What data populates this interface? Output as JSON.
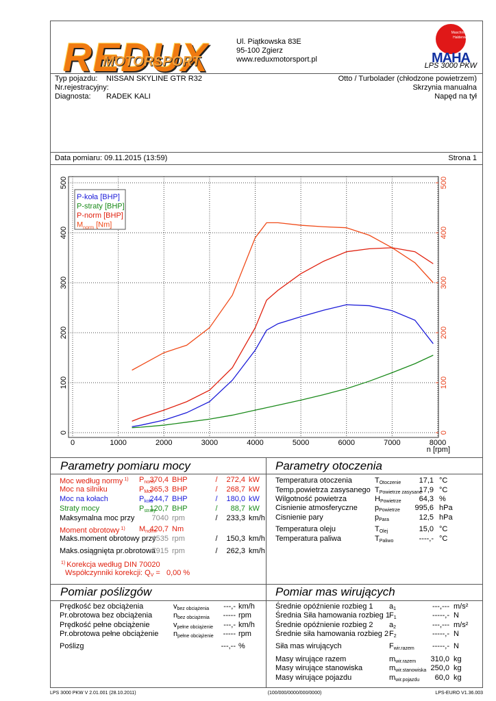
{
  "header": {
    "logo": "REDUX",
    "logo_sub": "MOTORSPORT",
    "address": [
      "Ul. Piątkowska 83E",
      "95-100 Zgierz",
      "www.reduxmotorsport.pl"
    ],
    "maha_ring": "Maschinenbau Haldenwang",
    "maha": "MAHA",
    "model": "LPS 3000 PKW"
  },
  "vehicle": {
    "left": [
      {
        "label": "Typ pojazdu:",
        "value": "NISSAN SKYLINE GTR R32"
      },
      {
        "label": "Nr.rejestracyjny:"
      },
      {
        "label": "Diagnosta:",
        "value": "RADEK KALI"
      }
    ],
    "right": [
      "Otto / Turbolader (chłodzone powietrzem)",
      "Skrzynia manualna",
      "Napęd na tył"
    ]
  },
  "measurement": {
    "date": "Data pomiaru: 09.11.2015 (13:59)",
    "page": "Strona 1"
  },
  "chart_data": {
    "type": "line",
    "x_label": "n [rpm]",
    "x": [
      1300,
      1500,
      2000,
      2500,
      3000,
      3500,
      4000,
      4250,
      4500,
      5000,
      5500,
      6000,
      6500,
      7000,
      7500,
      7900
    ],
    "xlim": [
      0,
      8000
    ],
    "xticks": [
      0,
      1000,
      2000,
      3000,
      4000,
      5000,
      6000,
      7000,
      8000
    ],
    "ylim": [
      0,
      500
    ],
    "yticks": [
      0,
      100,
      200,
      300,
      400,
      500
    ],
    "y2lim": [
      0,
      500
    ],
    "y2ticks": [
      0,
      100,
      200,
      300,
      400,
      500
    ],
    "y2_color": "#e8401a",
    "grid": true,
    "legend": "top-left",
    "series": [
      {
        "name": "P-koła [BHP]",
        "color": "#1a1ad8",
        "values": [
          12,
          15,
          25,
          40,
          62,
          105,
          165,
          205,
          218,
          232,
          245,
          256,
          254,
          244,
          225,
          178
        ]
      },
      {
        "name": "P-straty [BHP]",
        "color": "#1a8a1a",
        "values": [
          10,
          11,
          15,
          21,
          27,
          35,
          45,
          50,
          55,
          65,
          76,
          88,
          103,
          120,
          138,
          155
        ]
      },
      {
        "name": "P-norm [BHP]",
        "color": "#e0200e",
        "values": [
          23,
          30,
          45,
          62,
          85,
          130,
          210,
          265,
          285,
          318,
          343,
          362,
          368,
          370,
          362,
          338
        ]
      },
      {
        "name": "M",
        "name_sub": "norm",
        "name_unit": "[Nm]",
        "color": "#f04a18",
        "axis": "y2",
        "values": [
          125,
          135,
          160,
          175,
          210,
          275,
          390,
          420,
          420,
          415,
          412,
          410,
          395,
          370,
          340,
          300
        ]
      }
    ]
  },
  "sections": [
    {
      "title": "Parametry pomiaru mocy",
      "rows": [
        {
          "color": "#e0200e",
          "cells": [
            {
              "t": "Moc według normy",
              "sup": "1)"
            },
            {
              "t": "P",
              "sub": "norm"
            },
            "370,4",
            "BHP",
            "/",
            "272,4",
            "kW"
          ]
        },
        {
          "color": "#e0200e",
          "cells": [
            "Moc na silniku",
            {
              "t": "P",
              "sub": "Mot"
            },
            "365,3",
            "BHP",
            "/",
            "268,7",
            "kW"
          ]
        },
        {
          "color": "#1a1ad8",
          "cells": [
            "Moc na kołach",
            {
              "t": "P",
              "sub": "koła"
            },
            "244,7",
            "BHP",
            "/",
            "180,0",
            "kW"
          ]
        },
        {
          "color": "#1a8a1a",
          "cells": [
            "Straty mocy",
            {
              "t": "P",
              "sub": "straty"
            },
            "120,7",
            "BHP",
            "/",
            "88,7",
            "kW"
          ]
        },
        {
          "color": "#000000",
          "cells": [
            "Maksymalna moc przy",
            null,
            {
              "t": "7040",
              "color": "#888888"
            },
            {
              "t": "rpm",
              "color": "#888888"
            },
            "/",
            "233,3",
            "km/h"
          ]
        },
        {
          "color": "#e0200e",
          "cells": [
            {
              "t": "Moment obrotowy",
              "sup": "1)"
            },
            {
              "t": "M",
              "sub": "norm"
            },
            "420,7",
            "Nm"
          ]
        },
        {
          "color": "#000000",
          "cells": [
            "Maks.moment obrotowy przy",
            null,
            {
              "t": "4535",
              "color": "#888888"
            },
            {
              "t": "rpm",
              "color": "#888888"
            },
            "/",
            "150,3",
            "km/h"
          ]
        },
        {
          "color": "#000000",
          "cells": [
            "Maks.osiągnięta pr.obrotowa",
            null,
            {
              "t": "7915",
              "color": "#888888"
            },
            {
              "t": "rpm",
              "color": "#888888"
            },
            "/",
            "262,3",
            "km/h"
          ]
        }
      ],
      "notes": [
        {
          "pre": "1)",
          "t": "Korekcja według DIN 70020"
        },
        {
          "t": "Współczynniki korekcji: Q",
          "sub": "V",
          "after": "=   0,00 %"
        }
      ],
      "notes_color": "#e0200e"
    },
    {
      "title": "Parametry otoczenia",
      "rows": [
        {
          "cells": [
            "Temperatura otoczenia",
            {
              "t": "T",
              "sub": "Otoczenie"
            },
            "17,1",
            "°C"
          ]
        },
        {
          "cells": [
            "Temp.powietrza zasysanego",
            {
              "t": "T",
              "sub": "Powietrze zasysane"
            },
            "17,9",
            "°C"
          ]
        },
        {
          "cells": [
            "Wilgotność powietrza",
            {
              "t": "H",
              "sub": "Powietrze"
            },
            "64,3",
            "%"
          ]
        },
        {
          "cells": [
            "Cisnienie atmosferyczne",
            {
              "t": "p",
              "sub": "Powietrze"
            },
            "995,6",
            "hPa"
          ]
        },
        {
          "cells": [
            "Cisnienie pary",
            {
              "t": "p",
              "sub": "Para"
            },
            "12,5",
            "hPa"
          ]
        },
        {
          "cells": [
            "Temperatura oleju",
            {
              "t": "T",
              "sub": "Olej"
            },
            "15,0",
            "°C"
          ]
        },
        {
          "cells": [
            "Temperatura paliwa",
            {
              "t": "T",
              "sub": "Paliwo"
            },
            "----,-",
            "°C"
          ]
        }
      ]
    },
    {
      "title": "Pomiar poślizgów",
      "rows": [
        {
          "cells": [
            "Prędkość bez obciążenia",
            {
              "t": "v",
              "sub": "bez obciążenia"
            },
            "---,-",
            "km/h"
          ]
        },
        {
          "cells": [
            "Pr.obrotowa bez obciążenia",
            {
              "t": "n",
              "sub": "bez obciążenia"
            },
            "-----",
            "rpm"
          ]
        },
        {
          "cells": [
            "Prędkość pełne obciążenie",
            {
              "t": "v",
              "sub": "pełne obciążenie"
            },
            "---,-",
            "km/h"
          ]
        },
        {
          "cells": [
            "Pr.obrotowa pełne obciążenie",
            {
              "t": "n",
              "sub": "pełne obciążenie"
            },
            "-----",
            "rpm"
          ]
        },
        {
          "cells": [
            "Poślizg",
            null,
            "---,--",
            "%"
          ]
        }
      ]
    },
    {
      "title": "Pomiar mas wirujących",
      "rows": [
        {
          "cells": [
            "Średnie opóźnienie rozbieg 1",
            {
              "t": "a",
              "sub": "1"
            },
            "---,---",
            "m/s²"
          ]
        },
        {
          "cells": [
            "Średnia Siła hamowania rozbieg 1",
            {
              "t": "F",
              "sub": "1"
            },
            "-----,-",
            "N"
          ]
        },
        {
          "cells": [
            "Średnie opóźnienie rozbieg 2",
            {
              "t": "a",
              "sub": "2"
            },
            "---,---",
            "m/s²"
          ]
        },
        {
          "cells": [
            "Średnie siła hamowania rozbieg 2",
            {
              "t": "F",
              "sub": "2"
            },
            "-----,-",
            "N"
          ]
        },
        {
          "cells": [
            "Siła mas wirujących",
            {
              "t": "F",
              "sub": "wir.razem"
            },
            "-----,-",
            "N"
          ]
        },
        {
          "cells": [
            "Masy wirujące razem",
            {
              "t": "m",
              "sub": "wir.razem"
            },
            "310,0",
            "kg"
          ]
        },
        {
          "cells": [
            "Masy wirujące stanowiska",
            {
              "t": "m",
              "sub": "wir.stanowiska"
            },
            "250,0",
            "kg"
          ]
        },
        {
          "cells": [
            "Masy wirujące pojazdu",
            {
              "t": "m",
              "sub": "wir.pojazdu"
            },
            "60,0",
            "kg"
          ]
        }
      ]
    }
  ],
  "footer": [
    "LPS 3000 PKW V 2.01.001 (28.10.2011)",
    "(100/000/0000/000/0000)",
    "LPS-EURO V1.36.003"
  ]
}
